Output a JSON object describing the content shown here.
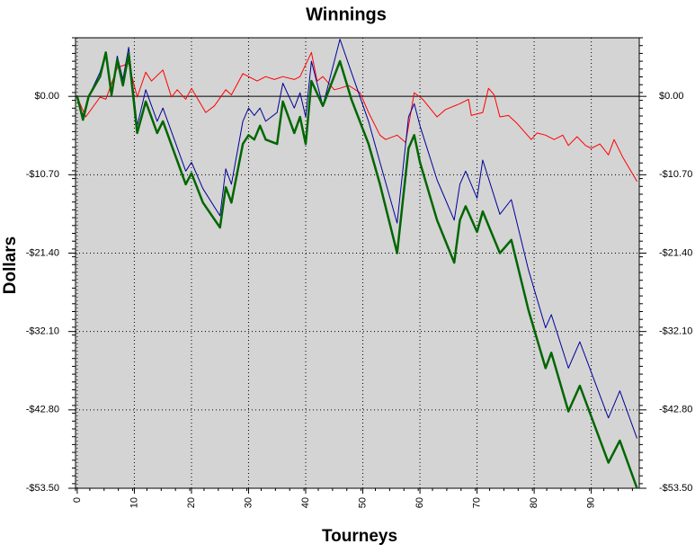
{
  "chart_data": {
    "type": "line",
    "title": "Winnings",
    "x_label": "Tourneys",
    "y_label": "Dollars",
    "xlim": [
      -0.3,
      98.4
    ],
    "ylim": [
      -53.5,
      8
    ],
    "xticks": [
      0,
      10,
      20,
      30,
      40,
      50,
      60,
      70,
      80,
      90
    ],
    "yticks": [
      {
        "value": 0,
        "label": "$0.00"
      },
      {
        "value": -10.7,
        "label": "-$10.70"
      },
      {
        "value": -21.4,
        "label": "-$21.40"
      },
      {
        "value": -32.1,
        "label": "-$32.10"
      },
      {
        "value": -42.8,
        "label": "-$42.80"
      },
      {
        "value": -53.5,
        "label": "-$53.50"
      }
    ],
    "grid": true,
    "background": "#d4d4d4",
    "series": [
      {
        "color": "#ff0000",
        "width": 1,
        "x": [
          0,
          1.5,
          4,
          5,
          7,
          9,
          10.5,
          12,
          13,
          15,
          16.5,
          17.5,
          19,
          20,
          22.5,
          24,
          26,
          27,
          29,
          30,
          31.5,
          33,
          34.5,
          36,
          38,
          39,
          41,
          42,
          43,
          45,
          46,
          47.5,
          49.5,
          51,
          53,
          54,
          56,
          57.5,
          59,
          60.5,
          63,
          64.5,
          67,
          68.5,
          69,
          71,
          72,
          73,
          74,
          75.5,
          77,
          79.5,
          80.5,
          82,
          83.5,
          85,
          86,
          87.5,
          89,
          90,
          91.5,
          93,
          94,
          95.5,
          98
        ],
        "values": [
          -0.1,
          -2.8,
          -0.1,
          -0.4,
          3.9,
          4.5,
          -0.1,
          3.3,
          2.1,
          3.6,
          -0.1,
          0.9,
          -0.4,
          1.1,
          -2.2,
          -1.3,
          0.9,
          0.2,
          3.1,
          2.7,
          2.1,
          2.7,
          2.3,
          2.7,
          2.3,
          2.7,
          6,
          2.1,
          2.7,
          0.9,
          1.1,
          1.5,
          0.5,
          -2.2,
          -5.3,
          -5.9,
          -5.3,
          -6.3,
          0.5,
          -0.4,
          -2.8,
          -1.8,
          -1,
          -0.4,
          -2.6,
          -2.2,
          1.1,
          0.2,
          -2.8,
          -2.6,
          -3.7,
          -5.9,
          -5,
          -5.3,
          -5.9,
          -5.3,
          -6.7,
          -5.5,
          -6.7,
          -7.1,
          -6.5,
          -8,
          -5.9,
          -8.3,
          -11.6
        ]
      },
      {
        "color": "#000099",
        "width": 1,
        "x": [
          0,
          1,
          2,
          4,
          5,
          6,
          7,
          8,
          9,
          10.5,
          12,
          14,
          15,
          19,
          20,
          22,
          25,
          26,
          27,
          29,
          30,
          31,
          32,
          33,
          35,
          36,
          38,
          39,
          40,
          41,
          43,
          46,
          48,
          51,
          53,
          56,
          58,
          59,
          60,
          63,
          66,
          67,
          68,
          70,
          71,
          74,
          76,
          79,
          82,
          83,
          86,
          88,
          93,
          95,
          98
        ],
        "values": [
          -0.4,
          -2.6,
          0,
          3.3,
          6,
          0.2,
          5.5,
          2.3,
          6.7,
          -4,
          0.9,
          -3.4,
          -1.6,
          -10.2,
          -9,
          -12.6,
          -16.3,
          -9.9,
          -12,
          -3.4,
          -1.6,
          -2.6,
          -1.6,
          -3.4,
          -2.2,
          1.8,
          -1.6,
          0.5,
          -2.8,
          4.8,
          -1.3,
          7.8,
          3.3,
          -3.4,
          -9,
          -17.3,
          -2.8,
          -1,
          -4,
          -11.4,
          -16.9,
          -12,
          -10.2,
          -13.9,
          -8.7,
          -16.1,
          -14.1,
          -23.7,
          -31.6,
          -29.8,
          -37.1,
          -33.5,
          -43.9,
          -40.2,
          -46.7
        ]
      },
      {
        "color": "#006600",
        "width": 2.5,
        "x": [
          0,
          1,
          2,
          4,
          5,
          6,
          7,
          8,
          9,
          10.5,
          12,
          14,
          15,
          19,
          20,
          22,
          25,
          26,
          27,
          29,
          30,
          31,
          32,
          33,
          35,
          36,
          38,
          39,
          40,
          41,
          43,
          46,
          48,
          51,
          53,
          56,
          58,
          59,
          60,
          63,
          66,
          67,
          68,
          70,
          71,
          74,
          76,
          79,
          82,
          83,
          86,
          88,
          93,
          95,
          98
        ],
        "values": [
          0,
          -3.2,
          0,
          2.7,
          6,
          0.2,
          5,
          1.5,
          5.8,
          -5,
          -0.7,
          -5,
          -3.4,
          -12,
          -10.5,
          -14.5,
          -17.9,
          -12.4,
          -14.5,
          -6.5,
          -5.3,
          -5.9,
          -4,
          -5.9,
          -6.5,
          -0.7,
          -5,
          -2.8,
          -6.5,
          2.1,
          -1.3,
          4.8,
          -0.4,
          -6.5,
          -12,
          -21.4,
          -7.1,
          -5.3,
          -9,
          -16.9,
          -22.7,
          -16.9,
          -15,
          -18.5,
          -15.7,
          -21.4,
          -19.6,
          -29.2,
          -37.1,
          -35,
          -43,
          -39.5,
          -50,
          -47,
          -53.5
        ]
      }
    ]
  }
}
